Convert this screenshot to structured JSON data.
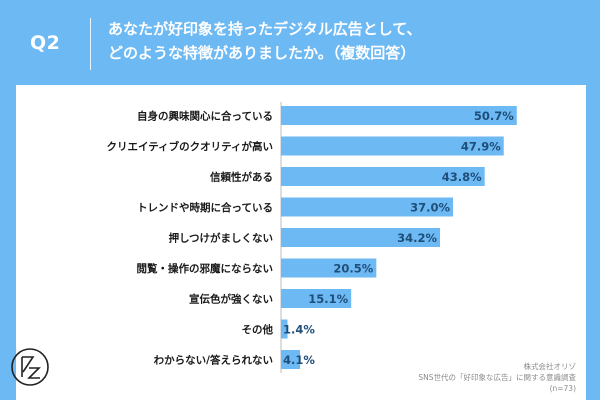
{
  "header": {
    "question_number": "Q2",
    "question_line1": "あなたが好印象を持ったデジタル広告として、",
    "question_line2": "どのような特徴がありましたか。（複数回答）"
  },
  "source": {
    "company": "株式会社オリゾ",
    "survey": "SNS世代の「好印象な広告」に関する意識調査",
    "sample": "(n=73)"
  },
  "colors": {
    "background": "#6db9f4",
    "bar": "#6db9f4",
    "label_text": "#1a1a1a",
    "value_text": "#1f4e79"
  },
  "chart_data": {
    "type": "bar",
    "orientation": "horizontal",
    "categories": [
      "自身の興味関心に合っている",
      "クリエイティブのクオリティが高い",
      "信頼性がある",
      "トレンドや時期に合っている",
      "押しつけがましくない",
      "閲覧・操作の邪魔にならない",
      "宣伝色が強くない",
      "その他",
      "わからない/答えられない"
    ],
    "values": [
      50.7,
      47.9,
      43.8,
      37.0,
      34.2,
      20.5,
      15.1,
      1.4,
      4.1
    ],
    "value_labels": [
      "50.7%",
      "47.9%",
      "43.8%",
      "37.0%",
      "34.2%",
      "20.5%",
      "15.1%",
      "1.4%",
      "4.1%"
    ],
    "unit": "%",
    "xlim": [
      0,
      100
    ],
    "grid": false,
    "legend": "none"
  }
}
